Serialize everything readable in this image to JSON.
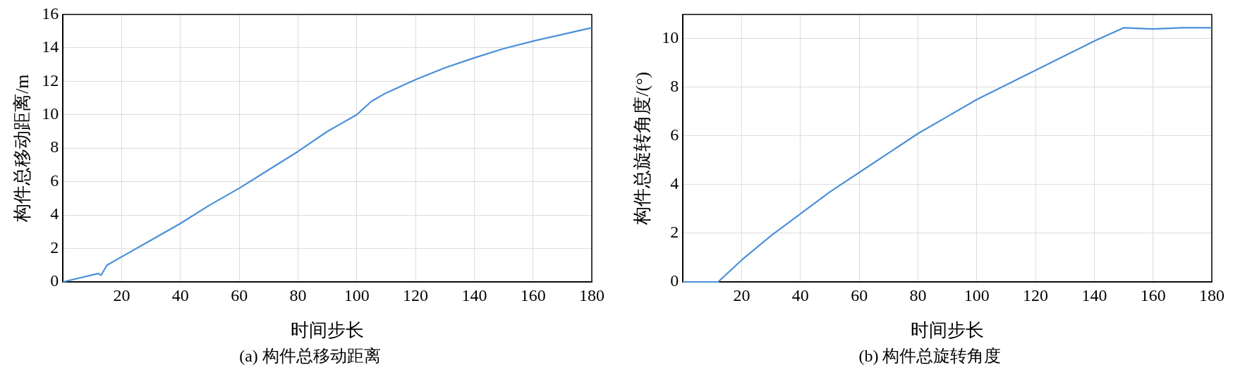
{
  "chart_data": [
    {
      "type": "line",
      "title": "(a) 构件总移动距离",
      "xlabel": "时间步长",
      "ylabel": "构件总移动距离/m",
      "x": [
        0,
        12,
        13,
        15,
        20,
        30,
        40,
        50,
        60,
        70,
        80,
        90,
        95,
        100,
        105,
        110,
        120,
        130,
        140,
        150,
        160,
        170,
        180
      ],
      "series": [
        {
          "color": "#4a90d9",
          "values": [
            0,
            0.5,
            0.4,
            1.0,
            1.5,
            2.5,
            3.5,
            4.6,
            5.6,
            6.7,
            7.8,
            9.0,
            9.5,
            10.0,
            10.8,
            11.3,
            12.1,
            12.8,
            13.4,
            13.95,
            14.4,
            14.8,
            15.2
          ]
        }
      ],
      "xlim": [
        0,
        180
      ],
      "xticks": [
        20,
        40,
        60,
        80,
        100,
        120,
        140,
        160,
        180
      ],
      "ylim": [
        0,
        16
      ],
      "yticks": [
        0,
        2,
        4,
        6,
        8,
        10,
        12,
        14,
        16
      ],
      "grid": true,
      "legend": false,
      "marker": "none",
      "line_style": "solid"
    },
    {
      "type": "line",
      "title": "(b) 构件总旋转角度",
      "xlabel": "时间步长",
      "ylabel": "构件总旋转角度/(°)",
      "x": [
        0,
        12,
        20,
        30,
        40,
        50,
        60,
        70,
        80,
        90,
        100,
        110,
        120,
        130,
        140,
        150,
        160,
        170,
        180
      ],
      "series": [
        {
          "color": "#4a90d9",
          "values": [
            0,
            0,
            0.9,
            1.9,
            2.8,
            3.7,
            4.5,
            5.3,
            6.1,
            6.8,
            7.5,
            8.1,
            8.7,
            9.3,
            9.9,
            10.45,
            10.4,
            10.45,
            10.45
          ]
        }
      ],
      "xlim": [
        0,
        180
      ],
      "xticks": [
        20,
        40,
        60,
        80,
        100,
        120,
        140,
        160,
        180
      ],
      "ylim": [
        0,
        11
      ],
      "yticks": [
        0,
        2,
        4,
        6,
        8,
        10
      ],
      "grid": true,
      "legend": false,
      "marker": "none",
      "line_style": "solid"
    }
  ]
}
